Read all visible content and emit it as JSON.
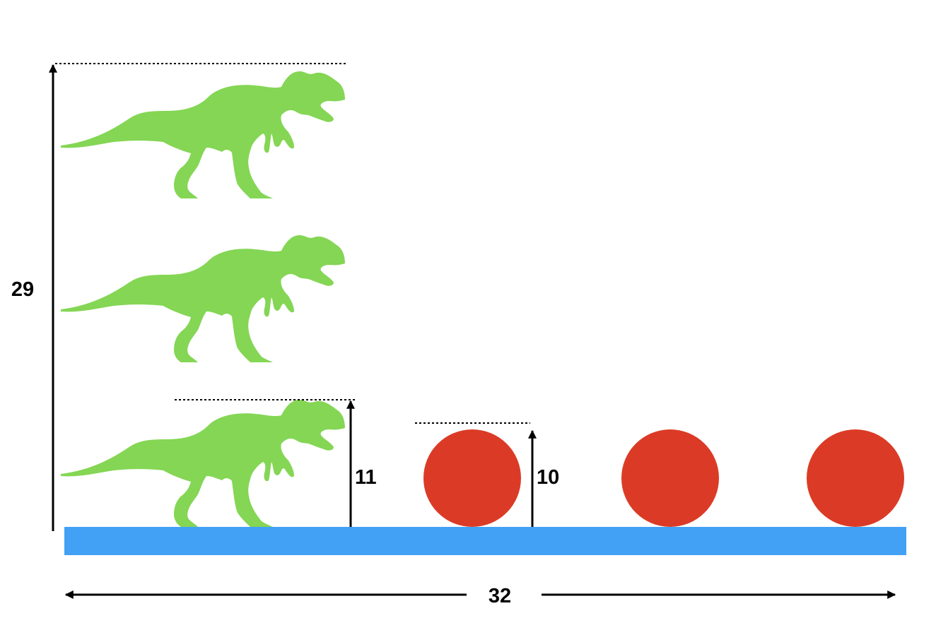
{
  "colors": {
    "dinosaur": "#84d654",
    "ball": "#db3b26",
    "ground": "#42a1f5",
    "line": "#000000"
  },
  "dimensions": {
    "total_height": "29",
    "dino_height": "11",
    "ball_height": "10",
    "ground_width": "32"
  },
  "counts": {
    "dinosaurs": 3,
    "balls": 3
  }
}
